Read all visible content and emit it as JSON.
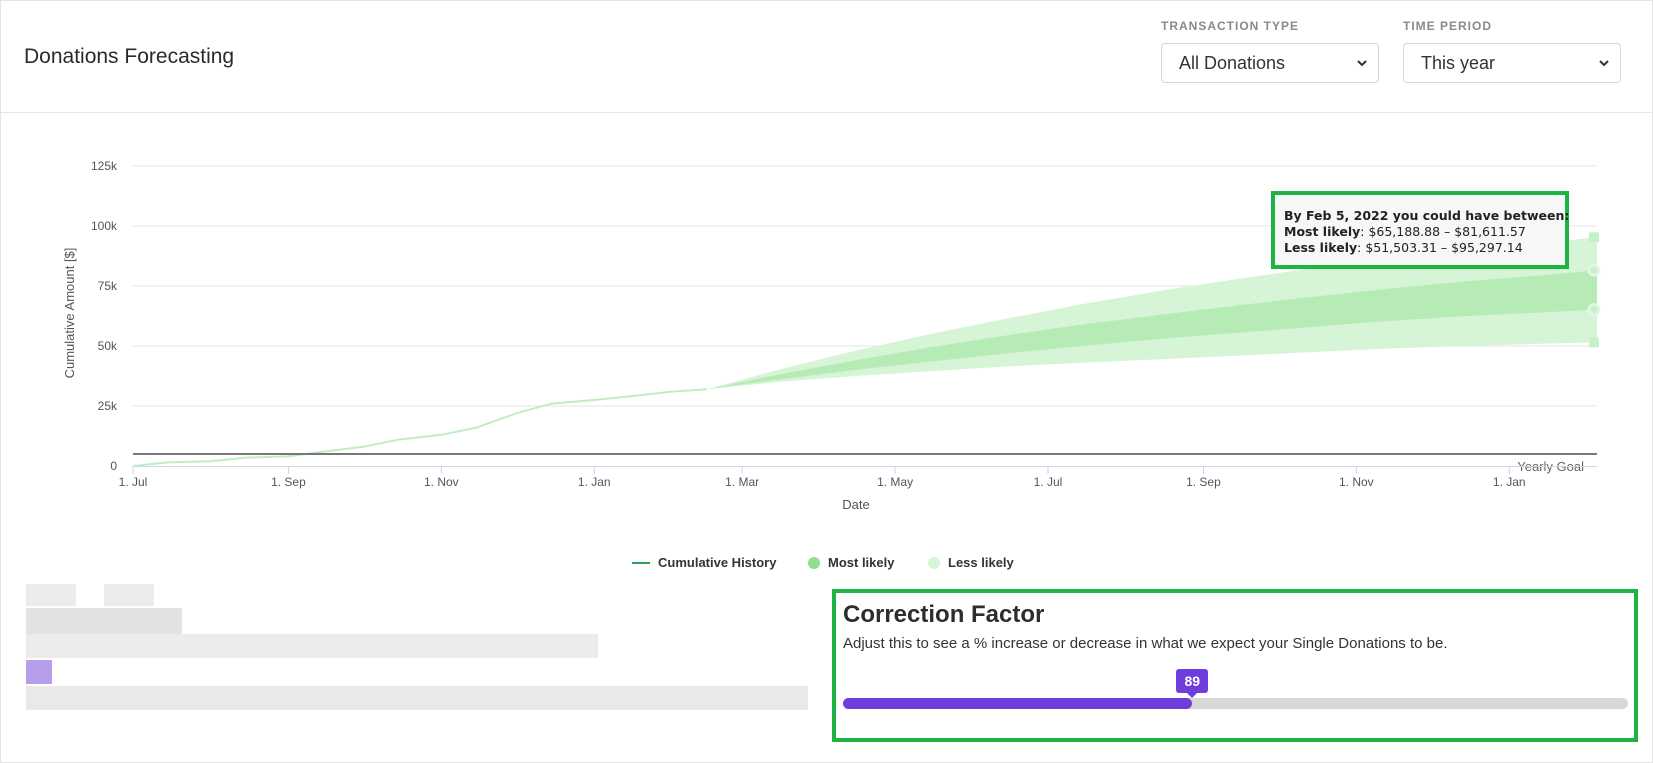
{
  "header": {
    "title": "Donations Forecasting",
    "transaction_type": {
      "label": "TRANSACTION TYPE",
      "selected": "All Donations"
    },
    "time_period": {
      "label": "TIME PERIOD",
      "selected": "This year"
    }
  },
  "tooltip": {
    "line1": "By Feb 5, 2022 you could have between:",
    "most_label": "Most likely",
    "most_range": ": $65,188.88 – $81,611.57",
    "less_label": "Less likely",
    "less_range": ": $51,503.31 – $95,297.14"
  },
  "legend": {
    "history": "Cumulative History",
    "most": "Most likely",
    "less": "Less likely"
  },
  "correction_factor": {
    "title": "Correction Factor",
    "description": "Adjust this to see a % increase or decrease in what we expect your Single Donations to be.",
    "value": "89",
    "fill_fraction": 0.445
  },
  "colors": {
    "history_line": "#22a55a",
    "most_band": "#b6ebb6",
    "less_band": "#d6f5d6",
    "goal_line": "#777777",
    "accent": "#6f3ddb",
    "highlight_border": "#1eb443"
  },
  "chart_data": {
    "type": "area",
    "ylabel": "Cumulative Amount [$]",
    "xlabel": "Date",
    "ylim": [
      0,
      125000
    ],
    "y_ticks": [
      "0",
      "25k",
      "50k",
      "75k",
      "100k",
      "125k"
    ],
    "y_tick_values": [
      0,
      25000,
      50000,
      75000,
      100000,
      125000
    ],
    "x_ticks": [
      "1. Jul",
      "1. Sep",
      "1. Nov",
      "1. Jan",
      "1. Mar",
      "1. May",
      "1. Jul",
      "1. Sep",
      "1. Nov",
      "1. Jan"
    ],
    "x_tick_dates": [
      "2020-07-01",
      "2020-09-01",
      "2020-11-01",
      "2021-01-01",
      "2021-03-01",
      "2021-05-01",
      "2021-07-01",
      "2021-09-01",
      "2021-11-01",
      "2022-01-01"
    ],
    "x_range": [
      "2020-07-01",
      "2022-02-05"
    ],
    "yearly_goal": {
      "label": "Yearly Goal",
      "value": 5000
    },
    "history": {
      "name": "Cumulative History",
      "x": [
        "2020-07-01",
        "2020-07-15",
        "2020-08-01",
        "2020-08-15",
        "2020-09-01",
        "2020-09-15",
        "2020-10-01",
        "2020-10-15",
        "2020-11-01",
        "2020-11-15",
        "2020-12-01",
        "2020-12-15",
        "2021-01-01",
        "2021-01-15",
        "2021-02-01",
        "2021-02-15"
      ],
      "y": [
        0,
        1500,
        2000,
        3500,
        4000,
        6000,
        8000,
        11000,
        13000,
        16000,
        22000,
        26000,
        27500,
        29000,
        31000,
        32000
      ]
    },
    "forecast": {
      "x": [
        "2021-02-15",
        "2021-03-15",
        "2021-04-15",
        "2021-05-15",
        "2021-06-15",
        "2021-07-15",
        "2021-08-15",
        "2021-09-15",
        "2021-10-15",
        "2021-11-15",
        "2021-12-15",
        "2022-01-15",
        "2022-02-05"
      ],
      "most_low": [
        32000,
        36000,
        40000,
        43500,
        47000,
        50000,
        53000,
        55500,
        58000,
        60500,
        62500,
        64000,
        65188.88
      ],
      "most_high": [
        32000,
        38000,
        44000,
        49500,
        54500,
        59000,
        63000,
        67000,
        70500,
        74000,
        77000,
        79500,
        81611.57
      ],
      "less_low": [
        32000,
        35000,
        37500,
        39500,
        41500,
        43000,
        44500,
        46000,
        47500,
        49000,
        50000,
        51000,
        51503.31
      ],
      "less_high": [
        32000,
        40000,
        48000,
        55000,
        61500,
        67500,
        73000,
        78000,
        82500,
        86500,
        90000,
        93000,
        95297.14
      ]
    },
    "legend_position": "bottom"
  }
}
